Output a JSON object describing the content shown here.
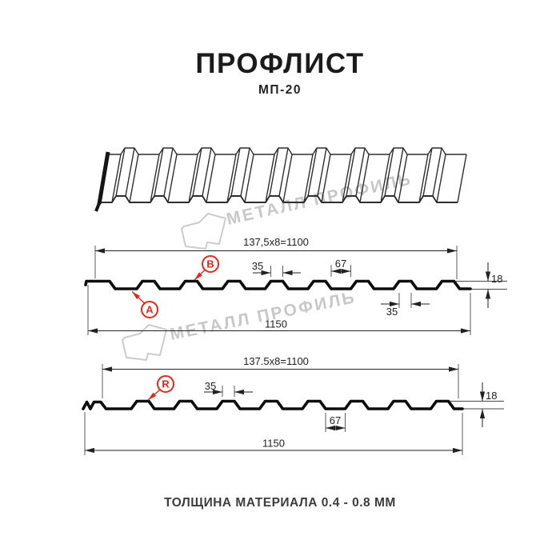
{
  "title": "ПРОФЛИСТ",
  "subtitle": "МП-20",
  "footer": "ТОЛЩИНА МАТЕРИАЛА 0.4 - 0.8 ММ",
  "watermark": {
    "text": "МЕТАЛЛ ПРОФИЛЬ",
    "color": "#c8c8c8"
  },
  "colors": {
    "profile_line": "#0d0d0d",
    "thin_line": "#2e2e2e",
    "dimension": "#222222",
    "red_accent": "#e5271b",
    "footer_text": "#3d3d3d",
    "title_text": "#1b1b1b"
  },
  "section_a": {
    "module_dim": "137,5x8=1100",
    "width_dim": "1150",
    "rib_top_dim": "35",
    "valley_dim": "67",
    "rib_bottom_dim": "35",
    "height_dim": "18",
    "label_a": "A",
    "label_b": "B"
  },
  "section_r": {
    "module_dim": "137.5x8=1100",
    "width_dim": "1150",
    "rib_top_dim": "35",
    "valley_dim": "67",
    "height_dim": "18",
    "label_r": "R"
  }
}
